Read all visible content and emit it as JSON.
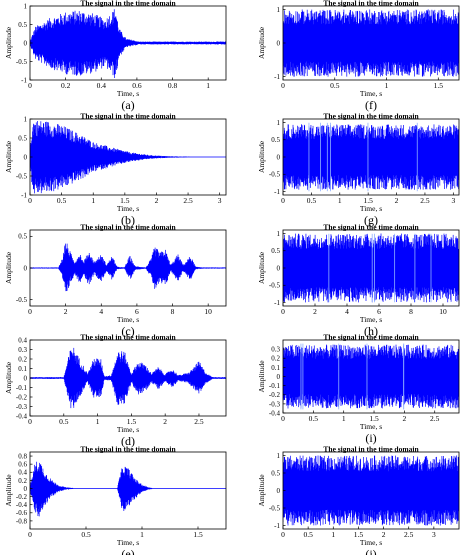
{
  "figure": {
    "colors": {
      "signal": "#0000ff",
      "axis": "#000000",
      "background": "#ffffff"
    }
  },
  "chart_data": [
    {
      "id": "a",
      "type": "line",
      "panel_label": "(a)",
      "title": "The signal in the time domain",
      "xlabel": "Time, s",
      "ylabel": "Amplitude",
      "xlim": [
        0,
        1.1
      ],
      "ylim": [
        -1,
        1
      ],
      "x_ticks": [
        0,
        0.2,
        0.4,
        0.6,
        0.8,
        1
      ],
      "y_ticks": [
        -1,
        -0.5,
        0,
        0.5,
        1
      ],
      "series": [
        {
          "envelope": [
            [
              0,
              0.05
            ],
            [
              0.03,
              0.45
            ],
            [
              0.12,
              0.7
            ],
            [
              0.2,
              0.85
            ],
            [
              0.28,
              0.9
            ],
            [
              0.36,
              0.8
            ],
            [
              0.42,
              0.65
            ],
            [
              0.46,
              0.85
            ],
            [
              0.48,
              1.0
            ],
            [
              0.5,
              0.4
            ],
            [
              0.54,
              0.12
            ],
            [
              0.58,
              0.08
            ],
            [
              0.61,
              0.04
            ]
          ]
        }
      ]
    },
    {
      "id": "b",
      "type": "line",
      "panel_label": "(b)",
      "title": "The signal in the time domain",
      "xlabel": "Time, s",
      "ylabel": "Amplitude",
      "xlim": [
        0,
        3.1
      ],
      "ylim": [
        -1,
        1
      ],
      "x_ticks": [
        0,
        0.5,
        1,
        1.5,
        2,
        2.5,
        3
      ],
      "y_ticks": [
        -1,
        -0.5,
        0,
        0.5,
        1
      ],
      "series": [
        {
          "envelope": [
            [
              0,
              0.3
            ],
            [
              0.05,
              1.0
            ],
            [
              0.3,
              0.95
            ],
            [
              0.5,
              0.85
            ],
            [
              0.8,
              0.6
            ],
            [
              1.0,
              0.4
            ],
            [
              1.3,
              0.25
            ],
            [
              1.6,
              0.12
            ],
            [
              1.9,
              0.05
            ],
            [
              2.2,
              0.02
            ],
            [
              3.0,
              0.0
            ]
          ]
        }
      ]
    },
    {
      "id": "c",
      "type": "line",
      "panel_label": "(c)",
      "title": "The signal in the time domain",
      "xlabel": "Time, s",
      "ylabel": "Amplitude",
      "xlim": [
        0,
        11
      ],
      "ylim": [
        -0.6,
        0.6
      ],
      "x_ticks": [
        0,
        2,
        4,
        6,
        8,
        10
      ],
      "y_ticks": [
        -0.5,
        0,
        0.5
      ],
      "series": [
        {
          "envelope": [
            [
              0,
              0.01
            ],
            [
              1.6,
              0.01
            ],
            [
              1.8,
              0.15
            ],
            [
              2.0,
              0.45
            ],
            [
              2.2,
              0.3
            ],
            [
              2.5,
              0.1
            ],
            [
              2.8,
              0.25
            ],
            [
              3.0,
              0.1
            ],
            [
              3.3,
              0.28
            ],
            [
              3.6,
              0.1
            ],
            [
              4.0,
              0.22
            ],
            [
              4.3,
              0.05
            ],
            [
              4.6,
              0.2
            ],
            [
              4.9,
              0.02
            ],
            [
              5.3,
              0.01
            ],
            [
              5.6,
              0.2
            ],
            [
              5.9,
              0.03
            ],
            [
              6.5,
              0.01
            ],
            [
              6.8,
              0.15
            ],
            [
              7.0,
              0.35
            ],
            [
              7.3,
              0.25
            ],
            [
              7.6,
              0.3
            ],
            [
              7.9,
              0.05
            ],
            [
              8.3,
              0.22
            ],
            [
              8.6,
              0.05
            ],
            [
              9.0,
              0.2
            ],
            [
              9.3,
              0.02
            ],
            [
              9.8,
              0.01
            ],
            [
              11,
              0.01
            ]
          ]
        }
      ]
    },
    {
      "id": "d",
      "type": "line",
      "panel_label": "(d)",
      "title": "The signal in the time domain",
      "xlabel": "Time, s",
      "ylabel": "Amplitude",
      "xlim": [
        0,
        2.9
      ],
      "ylim": [
        -0.4,
        0.4
      ],
      "x_ticks": [
        0,
        0.5,
        1,
        1.5,
        2,
        2.5
      ],
      "y_ticks": [
        -0.4,
        -0.3,
        -0.2,
        -0.1,
        0,
        0.1,
        0.2,
        0.3,
        0.4
      ],
      "series": [
        {
          "envelope": [
            [
              0,
              0.01
            ],
            [
              0.5,
              0.01
            ],
            [
              0.56,
              0.2
            ],
            [
              0.62,
              0.37
            ],
            [
              0.7,
              0.25
            ],
            [
              0.8,
              0.12
            ],
            [
              0.85,
              0.05
            ],
            [
              0.95,
              0.22
            ],
            [
              1.05,
              0.2
            ],
            [
              1.1,
              0.02
            ],
            [
              1.2,
              0.03
            ],
            [
              1.3,
              0.3
            ],
            [
              1.4,
              0.28
            ],
            [
              1.5,
              0.05
            ],
            [
              1.6,
              0.18
            ],
            [
              1.7,
              0.15
            ],
            [
              1.8,
              0.05
            ],
            [
              1.9,
              0.12
            ],
            [
              2.0,
              0.04
            ],
            [
              2.1,
              0.1
            ],
            [
              2.2,
              0.03
            ],
            [
              2.35,
              0.06
            ],
            [
              2.5,
              0.18
            ],
            [
              2.6,
              0.06
            ],
            [
              2.7,
              0.01
            ],
            [
              2.9,
              0.01
            ]
          ]
        }
      ]
    },
    {
      "id": "e",
      "type": "line",
      "panel_label": "(e)",
      "title": "The signal in the time domain",
      "xlabel": "Time, s",
      "ylabel": "Amplitude",
      "xlim": [
        0,
        1.75
      ],
      "ylim": [
        -1,
        0.9
      ],
      "x_ticks": [
        0,
        0.5,
        1,
        1.5
      ],
      "y_ticks": [
        -0.8,
        -0.6,
        -0.4,
        -0.2,
        0,
        0.2,
        0.4,
        0.6,
        0.8
      ],
      "series": [
        {
          "envelope": [
            [
              0,
              0.05
            ],
            [
              0.04,
              0.6
            ],
            [
              0.08,
              0.75
            ],
            [
              0.14,
              0.4
            ],
            [
              0.2,
              0.2
            ],
            [
              0.26,
              0.08
            ],
            [
              0.32,
              0.03
            ],
            [
              0.4,
              0.01
            ],
            [
              0.78,
              0.01
            ],
            [
              0.8,
              0.3
            ],
            [
              0.83,
              0.6
            ],
            [
              0.88,
              0.5
            ],
            [
              0.94,
              0.25
            ],
            [
              1.0,
              0.1
            ],
            [
              1.06,
              0.03
            ],
            [
              1.1,
              0.01
            ],
            [
              1.75,
              0.01
            ]
          ]
        }
      ]
    },
    {
      "id": "f",
      "type": "line",
      "panel_label": "(f)",
      "title": "The signal in the time domain",
      "xlabel": "Time, s",
      "ylabel": "Amplitude",
      "xlim": [
        0,
        1.7
      ],
      "ylim": [
        -1.1,
        1.1
      ],
      "x_ticks": [
        0,
        0.5,
        1,
        1.5
      ],
      "y_ticks": [
        -1,
        0,
        1
      ],
      "series": [
        {
          "envelope": [
            [
              0,
              1.0
            ],
            [
              1.7,
              1.0
            ]
          ]
        }
      ]
    },
    {
      "id": "g",
      "type": "line",
      "panel_label": "(g)",
      "title": "The signal in the time domain",
      "xlabel": "Time, s",
      "ylabel": "Amplitude",
      "xlim": [
        0,
        3.1
      ],
      "ylim": [
        -1.1,
        1.1
      ],
      "x_ticks": [
        0,
        0.5,
        1,
        1.5,
        2,
        2.5,
        3
      ],
      "y_ticks": [
        -1,
        -0.5,
        0,
        0.5,
        1
      ],
      "series": [
        {
          "envelope": [
            [
              0,
              0.95
            ],
            [
              3.1,
              0.95
            ]
          ]
        }
      ]
    },
    {
      "id": "h",
      "type": "line",
      "panel_label": "(h)",
      "title": "The signal in the time domain",
      "xlabel": "Time, s",
      "ylabel": "Amplitude",
      "xlim": [
        0,
        11
      ],
      "ylim": [
        -1.1,
        1.1
      ],
      "x_ticks": [
        0,
        2,
        4,
        6,
        8,
        10
      ],
      "y_ticks": [
        -1,
        -0.5,
        0,
        0.5,
        1
      ],
      "series": [
        {
          "envelope": [
            [
              0,
              1.0
            ],
            [
              11,
              1.0
            ]
          ]
        }
      ]
    },
    {
      "id": "i",
      "type": "line",
      "panel_label": "(i)",
      "title": "The signal in the time domain",
      "xlabel": "Time, s",
      "ylabel": "Amplitude",
      "xlim": [
        0,
        2.9
      ],
      "ylim": [
        -0.4,
        0.4
      ],
      "x_ticks": [
        0,
        0.5,
        1,
        1.5,
        2,
        2.5
      ],
      "y_ticks": [
        -0.4,
        -0.3,
        -0.2,
        -0.1,
        0,
        0.1,
        0.2,
        0.3
      ],
      "series": [
        {
          "envelope": [
            [
              0,
              0.35
            ],
            [
              2.9,
              0.35
            ]
          ]
        }
      ]
    },
    {
      "id": "j",
      "type": "line",
      "panel_label": "(j)",
      "title": "The signal in the time domain",
      "xlabel": "Time, s",
      "ylabel": "Amplitude",
      "xlim": [
        0,
        3.5
      ],
      "ylim": [
        -1.1,
        1.1
      ],
      "x_ticks": [
        0,
        0.5,
        1,
        1.5,
        2,
        2.5,
        3
      ],
      "y_ticks": [
        -1,
        -0.5,
        0,
        0.5,
        1
      ],
      "series": [
        {
          "envelope": [
            [
              0,
              1.0
            ],
            [
              3.5,
              1.0
            ]
          ]
        }
      ]
    }
  ]
}
